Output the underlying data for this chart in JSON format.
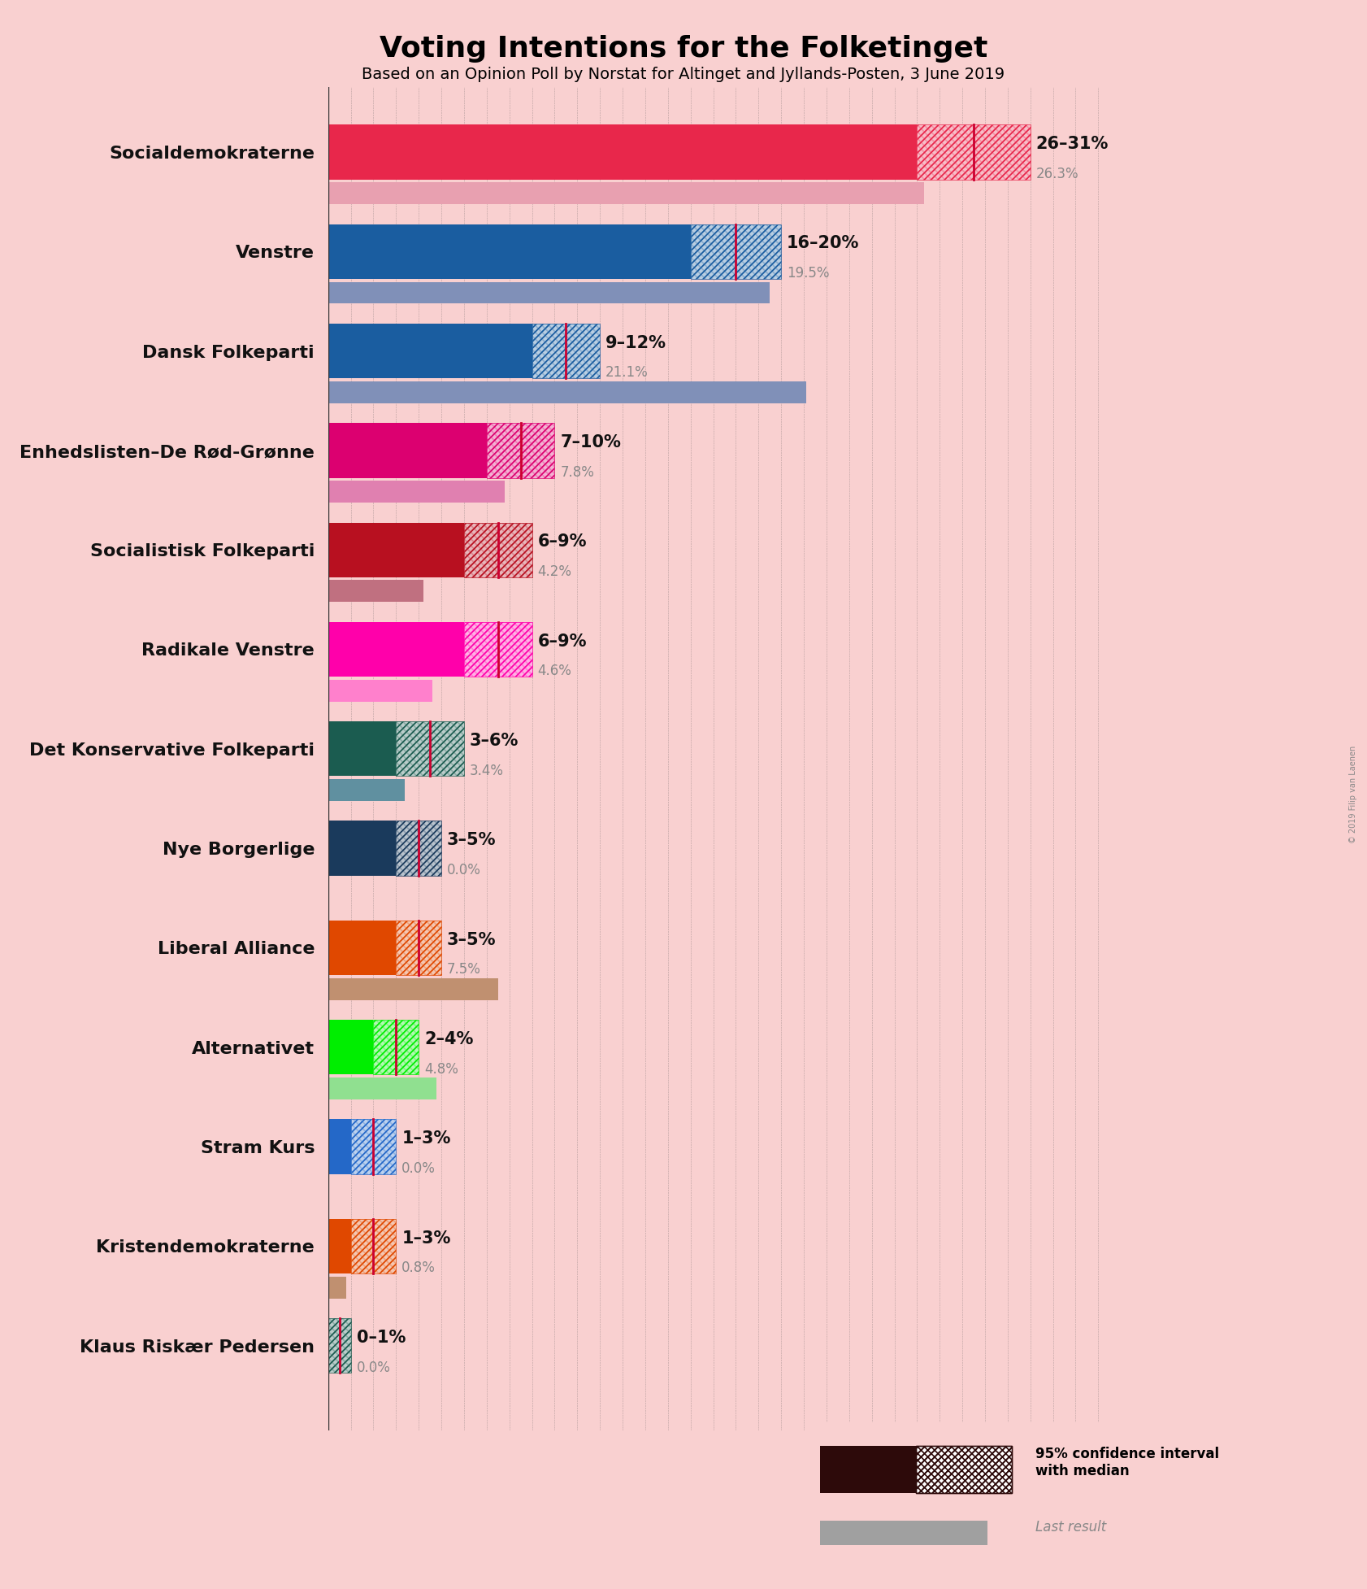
{
  "title": "Voting Intentions for the Folketinget",
  "subtitle": "Based on an Opinion Poll by Norstat for Altinget and Jyllands-Posten, 3 June 2019",
  "copyright": "© 2019 Filip van Laenen",
  "background_color": "#f9d0d0",
  "parties": [
    "Socialdemokraterne",
    "Venstre",
    "Dansk Folkeparti",
    "Enhedslisten–De Rød-Grønne",
    "Socialistisk Folkeparti",
    "Radikale Venstre",
    "Det Konservative Folkeparti",
    "Nye Borgerlige",
    "Liberal Alliance",
    "Alternativet",
    "Stram Kurs",
    "Kristendemokraterne",
    "Klaus Riskær Pedersen"
  ],
  "ci_low": [
    26,
    16,
    9,
    7,
    6,
    6,
    3,
    3,
    3,
    2,
    1,
    1,
    0
  ],
  "ci_high": [
    31,
    20,
    12,
    10,
    9,
    9,
    6,
    5,
    5,
    4,
    3,
    3,
    1
  ],
  "median": [
    28.5,
    18.0,
    10.5,
    8.5,
    7.5,
    7.5,
    4.5,
    4.0,
    4.0,
    3.0,
    2.0,
    2.0,
    0.5
  ],
  "last_result": [
    26.3,
    19.5,
    21.1,
    7.8,
    4.2,
    4.6,
    3.4,
    0.0,
    7.5,
    4.8,
    0.0,
    0.8,
    0.0
  ],
  "range_labels": [
    "26–31%",
    "16–20%",
    "9–12%",
    "7–10%",
    "6–9%",
    "6–9%",
    "3–6%",
    "3–5%",
    "3–5%",
    "2–4%",
    "1–3%",
    "1–3%",
    "0–1%"
  ],
  "last_result_labels": [
    "26.3%",
    "19.5%",
    "21.1%",
    "7.8%",
    "4.2%",
    "4.6%",
    "3.4%",
    "0.0%",
    "7.5%",
    "4.8%",
    "0.0%",
    "0.8%",
    "0.0%"
  ],
  "bar_colors": [
    "#e8274b",
    "#1a5da0",
    "#1a5da0",
    "#dc0070",
    "#b81020",
    "#ff00aa",
    "#1b5c50",
    "#1a3a5c",
    "#e04800",
    "#00ee00",
    "#2468c8",
    "#e04800",
    "#1b5c50"
  ],
  "last_colors": [
    "#e8a0b0",
    "#8090b8",
    "#8090b8",
    "#e080b0",
    "#c07080",
    "#ff80cc",
    "#6090a0",
    "#708090",
    "#c09070",
    "#90e090",
    "#8090d0",
    "#c09070",
    "#70a090"
  ],
  "xmax": 35,
  "legend_ci_color": "#2d0a0a",
  "legend_last_color": "#a0a0a0"
}
